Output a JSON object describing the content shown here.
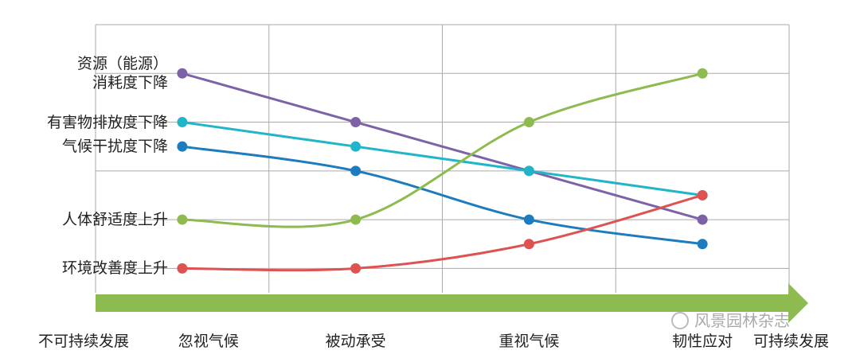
{
  "chart_data": {
    "type": "line",
    "categories": [
      "忽视气候",
      "被动承受",
      "重视气候",
      "韧性应对"
    ],
    "start_label": "不可持续发展",
    "end_label": "可持续发展",
    "watermark": "风景园林杂志",
    "ylim": [
      0.5,
      6
    ],
    "yticks": [
      1,
      2,
      3,
      4,
      5,
      6
    ],
    "grid": true,
    "series": [
      {
        "name": "资源（能源）\n消耗度下降",
        "color": "#7d62a8",
        "values": [
          5,
          4,
          3,
          2
        ]
      },
      {
        "name": "有害物排放度下降",
        "color": "#22b5c9",
        "values": [
          4,
          3.5,
          3,
          2.5
        ]
      },
      {
        "name": "气候干扰度下降",
        "color": "#1c7cbd",
        "values": [
          3.5,
          3,
          2,
          1.5
        ]
      },
      {
        "name": "人体舒适度上升",
        "color": "#8dbb50",
        "values": [
          2,
          2,
          4,
          5
        ]
      },
      {
        "name": "环境改善度上升",
        "color": "#de5352",
        "values": [
          1,
          1,
          1.5,
          2.5
        ]
      }
    ]
  }
}
